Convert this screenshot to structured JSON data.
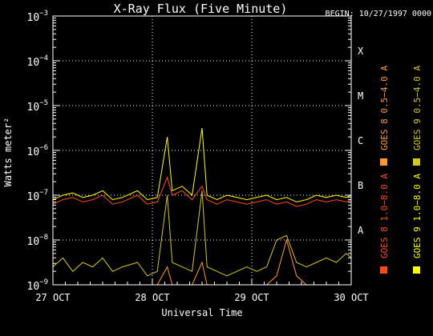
{
  "chart_data": {
    "type": "line",
    "title": "X-Ray Flux (Five Minute)",
    "begin_label": "BEGIN: 10/27/1997 0000",
    "xlabel": "Universal Time",
    "ylabel": "Watts meter²",
    "yscale": "log",
    "ylim": [
      1e-09,
      0.001
    ],
    "xlim": [
      0,
      3
    ],
    "x_ticks": [
      {
        "x": 0,
        "label": "27 OCT"
      },
      {
        "x": 1,
        "label": "28 OCT"
      },
      {
        "x": 2,
        "label": "29 OCT"
      },
      {
        "x": 3,
        "label": "30 OCT"
      }
    ],
    "y_ticks": [
      {
        "exp": -9,
        "base": "10",
        "sup": "−9"
      },
      {
        "exp": -8,
        "base": "10",
        "sup": "−8"
      },
      {
        "exp": -7,
        "base": "10",
        "sup": "−7"
      },
      {
        "exp": -6,
        "base": "10",
        "sup": "−6"
      },
      {
        "exp": -5,
        "base": "10",
        "sup": "−5"
      },
      {
        "exp": -4,
        "base": "10",
        "sup": "−4"
      },
      {
        "exp": -3,
        "base": "10",
        "sup": "−3"
      }
    ],
    "flare_classes": [
      {
        "exp": -8,
        "label": "A"
      },
      {
        "exp": -7,
        "label": "B"
      },
      {
        "exp": -6,
        "label": "C"
      },
      {
        "exp": -5,
        "label": "M"
      },
      {
        "exp": -4,
        "label": "X"
      }
    ],
    "grid": "dotted",
    "legend_position": "right (vertical)",
    "series": [
      {
        "name": "GOES 8 1.0−8.0 A",
        "color": "#ff4a1a",
        "points": [
          [
            0,
            -7.2
          ],
          [
            0.1,
            -7.1
          ],
          [
            0.2,
            -7.05
          ],
          [
            0.3,
            -7.15
          ],
          [
            0.4,
            -7.1
          ],
          [
            0.5,
            -7.0
          ],
          [
            0.6,
            -7.2
          ],
          [
            0.7,
            -7.15
          ],
          [
            0.85,
            -7.0
          ],
          [
            0.95,
            -7.2
          ],
          [
            1.05,
            -7.15
          ],
          [
            1.15,
            -6.6
          ],
          [
            1.2,
            -7.0
          ],
          [
            1.3,
            -6.9
          ],
          [
            1.4,
            -7.1
          ],
          [
            1.5,
            -6.8
          ],
          [
            1.55,
            -7.1
          ],
          [
            1.65,
            -7.2
          ],
          [
            1.75,
            -7.1
          ],
          [
            1.85,
            -7.15
          ],
          [
            1.95,
            -7.2
          ],
          [
            2.05,
            -7.15
          ],
          [
            2.15,
            -7.1
          ],
          [
            2.25,
            -7.2
          ],
          [
            2.35,
            -7.15
          ],
          [
            2.45,
            -7.25
          ],
          [
            2.55,
            -7.2
          ],
          [
            2.65,
            -7.1
          ],
          [
            2.75,
            -7.15
          ],
          [
            2.85,
            -7.1
          ],
          [
            2.95,
            -7.15
          ],
          [
            3.0,
            -7.1
          ]
        ]
      },
      {
        "name": "GOES 8 0.5−4.0 A",
        "color": "#ff9a2a",
        "points": [
          [
            0,
            -9
          ],
          [
            0.1,
            -9
          ],
          [
            0.2,
            -9
          ],
          [
            0.3,
            -9
          ],
          [
            0.4,
            -9
          ],
          [
            0.5,
            -9
          ],
          [
            0.6,
            -9
          ],
          [
            0.7,
            -9
          ],
          [
            0.85,
            -9
          ],
          [
            0.95,
            -9
          ],
          [
            1.05,
            -9
          ],
          [
            1.15,
            -8.6
          ],
          [
            1.2,
            -9
          ],
          [
            1.3,
            -9
          ],
          [
            1.4,
            -9
          ],
          [
            1.5,
            -8.5
          ],
          [
            1.55,
            -9
          ],
          [
            1.65,
            -9
          ],
          [
            1.75,
            -9
          ],
          [
            1.85,
            -9
          ],
          [
            1.95,
            -9
          ],
          [
            2.05,
            -9
          ],
          [
            2.15,
            -9
          ],
          [
            2.25,
            -8.8
          ],
          [
            2.35,
            -8.0
          ],
          [
            2.45,
            -8.8
          ],
          [
            2.55,
            -9
          ],
          [
            2.65,
            -9
          ],
          [
            2.75,
            -9
          ],
          [
            2.85,
            -9
          ],
          [
            2.95,
            -9
          ],
          [
            3.0,
            -9
          ]
        ]
      },
      {
        "name": "GOES 9 1.0−8.0 A",
        "color": "#ffff00",
        "points": [
          [
            0,
            -7.1
          ],
          [
            0.1,
            -7.0
          ],
          [
            0.2,
            -6.95
          ],
          [
            0.3,
            -7.05
          ],
          [
            0.4,
            -7.0
          ],
          [
            0.5,
            -6.9
          ],
          [
            0.6,
            -7.1
          ],
          [
            0.7,
            -7.05
          ],
          [
            0.85,
            -6.9
          ],
          [
            0.95,
            -7.1
          ],
          [
            1.05,
            -7.05
          ],
          [
            1.15,
            -5.7
          ],
          [
            1.2,
            -6.9
          ],
          [
            1.3,
            -6.8
          ],
          [
            1.4,
            -7.0
          ],
          [
            1.5,
            -5.5
          ],
          [
            1.55,
            -7.0
          ],
          [
            1.65,
            -7.1
          ],
          [
            1.75,
            -7.0
          ],
          [
            1.85,
            -7.05
          ],
          [
            1.95,
            -7.1
          ],
          [
            2.05,
            -7.05
          ],
          [
            2.15,
            -7.0
          ],
          [
            2.25,
            -7.1
          ],
          [
            2.35,
            -7.05
          ],
          [
            2.45,
            -7.15
          ],
          [
            2.55,
            -7.1
          ],
          [
            2.65,
            -7.0
          ],
          [
            2.75,
            -7.05
          ],
          [
            2.85,
            -7.0
          ],
          [
            2.95,
            -7.05
          ],
          [
            3.0,
            -7.0
          ]
        ]
      },
      {
        "name": "GOES 9 0.5−4.0 A",
        "color": "#d4c820",
        "points": [
          [
            0,
            -8.6
          ],
          [
            0.1,
            -8.4
          ],
          [
            0.2,
            -8.7
          ],
          [
            0.3,
            -8.5
          ],
          [
            0.4,
            -8.6
          ],
          [
            0.5,
            -8.4
          ],
          [
            0.6,
            -8.7
          ],
          [
            0.7,
            -8.6
          ],
          [
            0.85,
            -8.5
          ],
          [
            0.95,
            -8.8
          ],
          [
            1.05,
            -8.7
          ],
          [
            1.15,
            -7.0
          ],
          [
            1.2,
            -8.5
          ],
          [
            1.3,
            -8.6
          ],
          [
            1.4,
            -8.7
          ],
          [
            1.5,
            -6.9
          ],
          [
            1.55,
            -8.6
          ],
          [
            1.65,
            -8.7
          ],
          [
            1.75,
            -8.8
          ],
          [
            1.85,
            -8.7
          ],
          [
            1.95,
            -8.6
          ],
          [
            2.05,
            -8.7
          ],
          [
            2.15,
            -8.6
          ],
          [
            2.25,
            -8.0
          ],
          [
            2.35,
            -7.9
          ],
          [
            2.45,
            -8.5
          ],
          [
            2.55,
            -8.6
          ],
          [
            2.65,
            -8.5
          ],
          [
            2.75,
            -8.4
          ],
          [
            2.85,
            -8.5
          ],
          [
            2.95,
            -8.3
          ],
          [
            3.0,
            -8.4
          ]
        ]
      }
    ]
  }
}
